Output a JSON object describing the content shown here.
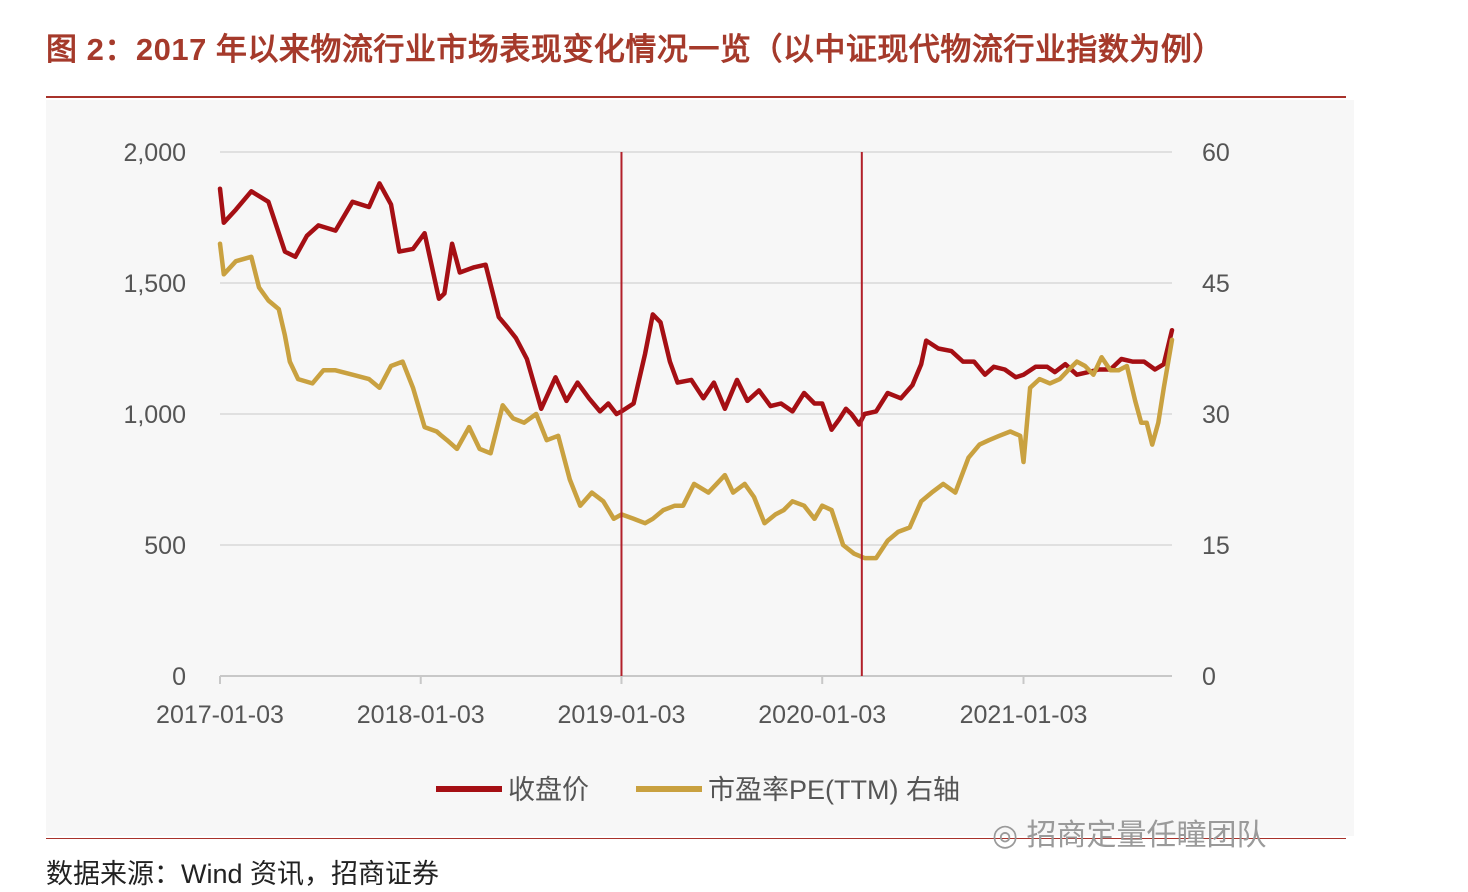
{
  "figure_title": "图 2：2017 年以来物流行业市场表现变化情况一览（以中证现代物流行业指数为例）",
  "source_note": "数据来源：Wind 资讯，招商证券",
  "watermark_text": "招商定量任瞳团队",
  "colors": {
    "title": "#a53a2b",
    "price_series": "#a50f14",
    "pe_series": "#c9a140",
    "grid": "#d9d9d9",
    "marker_line": "#b2202a"
  },
  "chart_data": {
    "type": "line",
    "xlabel": "",
    "ylabel": "",
    "y_left": {
      "range": [
        0,
        2000
      ],
      "ticks": [
        0,
        500,
        1000,
        1500,
        2000
      ],
      "tick_labels": [
        "0",
        "500",
        "1,000",
        "1,500",
        "2,000"
      ]
    },
    "y_right": {
      "range": [
        0,
        60
      ],
      "ticks": [
        0,
        15,
        30,
        45,
        60
      ],
      "tick_labels": [
        "0",
        "15",
        "30",
        "45",
        "60"
      ]
    },
    "x_axis": {
      "range": [
        "2017-01-03",
        "2021-09-30"
      ],
      "ticks": [
        "2017-01-03",
        "2018-01-03",
        "2019-01-03",
        "2020-01-03",
        "2021-01-03"
      ],
      "tick_labels": [
        "2017-01-03",
        "2018-01-03",
        "2019-01-03",
        "2020-01-03",
        "2021-01-03"
      ]
    },
    "grid": true,
    "legend_position": "bottom",
    "vertical_markers": [
      "2019-01-03",
      "2020-03-15"
    ],
    "series": [
      {
        "name": "收盘价",
        "axis": "left",
        "color": "#a50f14",
        "x": [
          "2017-01-03",
          "2017-01-10",
          "2017-02-01",
          "2017-03-01",
          "2017-04-01",
          "2017-05-01",
          "2017-05-20",
          "2017-06-10",
          "2017-07-01",
          "2017-08-01",
          "2017-09-01",
          "2017-10-01",
          "2017-10-20",
          "2017-11-10",
          "2017-11-25",
          "2017-12-20",
          "2018-01-10",
          "2018-02-05",
          "2018-02-15",
          "2018-03-01",
          "2018-03-15",
          "2018-04-10",
          "2018-05-01",
          "2018-05-25",
          "2018-06-10",
          "2018-06-25",
          "2018-07-15",
          "2018-08-10",
          "2018-09-05",
          "2018-09-25",
          "2018-10-15",
          "2018-11-05",
          "2018-11-25",
          "2018-12-10",
          "2018-12-25",
          "2019-01-03",
          "2019-01-25",
          "2019-02-15",
          "2019-03-01",
          "2019-03-15",
          "2019-04-01",
          "2019-04-15",
          "2019-05-10",
          "2019-06-01",
          "2019-06-20",
          "2019-07-10",
          "2019-08-01",
          "2019-08-20",
          "2019-09-10",
          "2019-10-01",
          "2019-10-20",
          "2019-11-10",
          "2019-12-01",
          "2019-12-20",
          "2020-01-03",
          "2020-01-20",
          "2020-02-03",
          "2020-02-15",
          "2020-02-25",
          "2020-03-10",
          "2020-03-20",
          "2020-04-10",
          "2020-05-01",
          "2020-05-25",
          "2020-06-15",
          "2020-07-01",
          "2020-07-10",
          "2020-08-01",
          "2020-08-25",
          "2020-09-15",
          "2020-10-05",
          "2020-10-25",
          "2020-11-10",
          "2020-11-30",
          "2020-12-20",
          "2021-01-03",
          "2021-01-25",
          "2021-02-15",
          "2021-03-01",
          "2021-03-20",
          "2021-04-10",
          "2021-05-01",
          "2021-05-20",
          "2021-06-10",
          "2021-06-30",
          "2021-07-20",
          "2021-08-10",
          "2021-08-30",
          "2021-09-15",
          "2021-09-30"
        ],
        "values": [
          1860,
          1730,
          1780,
          1850,
          1810,
          1620,
          1600,
          1680,
          1720,
          1700,
          1810,
          1790,
          1880,
          1800,
          1620,
          1630,
          1690,
          1440,
          1460,
          1650,
          1540,
          1560,
          1570,
          1370,
          1330,
          1290,
          1210,
          1020,
          1140,
          1050,
          1120,
          1060,
          1010,
          1040,
          1000,
          1010,
          1040,
          1230,
          1380,
          1350,
          1200,
          1120,
          1130,
          1060,
          1120,
          1020,
          1130,
          1050,
          1090,
          1030,
          1040,
          1010,
          1080,
          1040,
          1040,
          940,
          980,
          1020,
          1000,
          960,
          1000,
          1010,
          1080,
          1060,
          1110,
          1190,
          1280,
          1250,
          1240,
          1200,
          1200,
          1150,
          1180,
          1170,
          1140,
          1150,
          1180,
          1180,
          1160,
          1190,
          1150,
          1160,
          1170,
          1170,
          1210,
          1200,
          1200,
          1170,
          1190,
          1320
        ]
      },
      {
        "name": "市盈率PE(TTM) 右轴",
        "axis": "right",
        "color": "#c9a140",
        "x": [
          "2017-01-03",
          "2017-01-10",
          "2017-02-01",
          "2017-03-01",
          "2017-03-15",
          "2017-04-01",
          "2017-04-20",
          "2017-05-01",
          "2017-05-10",
          "2017-05-25",
          "2017-06-20",
          "2017-07-10",
          "2017-08-01",
          "2017-09-01",
          "2017-10-01",
          "2017-10-20",
          "2017-11-10",
          "2017-12-01",
          "2017-12-20",
          "2018-01-10",
          "2018-02-01",
          "2018-02-10",
          "2018-02-20",
          "2018-03-10",
          "2018-04-01",
          "2018-04-20",
          "2018-05-10",
          "2018-06-01",
          "2018-06-20",
          "2018-07-10",
          "2018-08-01",
          "2018-08-20",
          "2018-09-10",
          "2018-10-01",
          "2018-10-20",
          "2018-11-10",
          "2018-12-01",
          "2018-12-20",
          "2019-01-03",
          "2019-01-25",
          "2019-02-15",
          "2019-03-01",
          "2019-03-20",
          "2019-04-10",
          "2019-04-25",
          "2019-05-15",
          "2019-06-10",
          "2019-06-25",
          "2019-07-10",
          "2019-07-25",
          "2019-08-15",
          "2019-09-01",
          "2019-09-20",
          "2019-10-10",
          "2019-10-25",
          "2019-11-10",
          "2019-12-01",
          "2019-12-20",
          "2020-01-03",
          "2020-01-20",
          "2020-02-10",
          "2020-03-01",
          "2020-03-20",
          "2020-04-10",
          "2020-05-01",
          "2020-05-20",
          "2020-06-10",
          "2020-07-01",
          "2020-07-20",
          "2020-08-10",
          "2020-09-01",
          "2020-09-25",
          "2020-10-15",
          "2020-11-01",
          "2020-11-20",
          "2020-12-10",
          "2020-12-28",
          "2021-01-03",
          "2021-01-15",
          "2021-02-01",
          "2021-02-20",
          "2021-03-10",
          "2021-03-25",
          "2021-04-10",
          "2021-04-25",
          "2021-05-10",
          "2021-05-25",
          "2021-06-10",
          "2021-06-25",
          "2021-07-10",
          "2021-07-25",
          "2021-08-05",
          "2021-08-15",
          "2021-08-25",
          "2021-09-05",
          "2021-09-15",
          "2021-09-30"
        ],
        "values": [
          49.5,
          46,
          47.5,
          48,
          44.5,
          43,
          42,
          39,
          36,
          34,
          33.5,
          35,
          35,
          34.5,
          34,
          33,
          35.5,
          36,
          33,
          28.5,
          28,
          27.5,
          27,
          26,
          28.5,
          26,
          25.5,
          31,
          29.5,
          29,
          30,
          27,
          27.5,
          22.5,
          19.5,
          21,
          20,
          18,
          18.5,
          18,
          17.5,
          18,
          19,
          19.5,
          19.5,
          22,
          21,
          22,
          23,
          21,
          22,
          20.5,
          17.5,
          18.5,
          19,
          20,
          19.5,
          18,
          19.5,
          19,
          15,
          14,
          13.5,
          13.5,
          15.5,
          16.5,
          17,
          20,
          21,
          22,
          21,
          25,
          26.5,
          27,
          27.5,
          28,
          27.5,
          24.5,
          33,
          34,
          33.5,
          34,
          35,
          36,
          35.5,
          34.5,
          36.5,
          35,
          35,
          35.5,
          31.5,
          29,
          29,
          26.5,
          29,
          33,
          38.5
        ]
      }
    ]
  }
}
